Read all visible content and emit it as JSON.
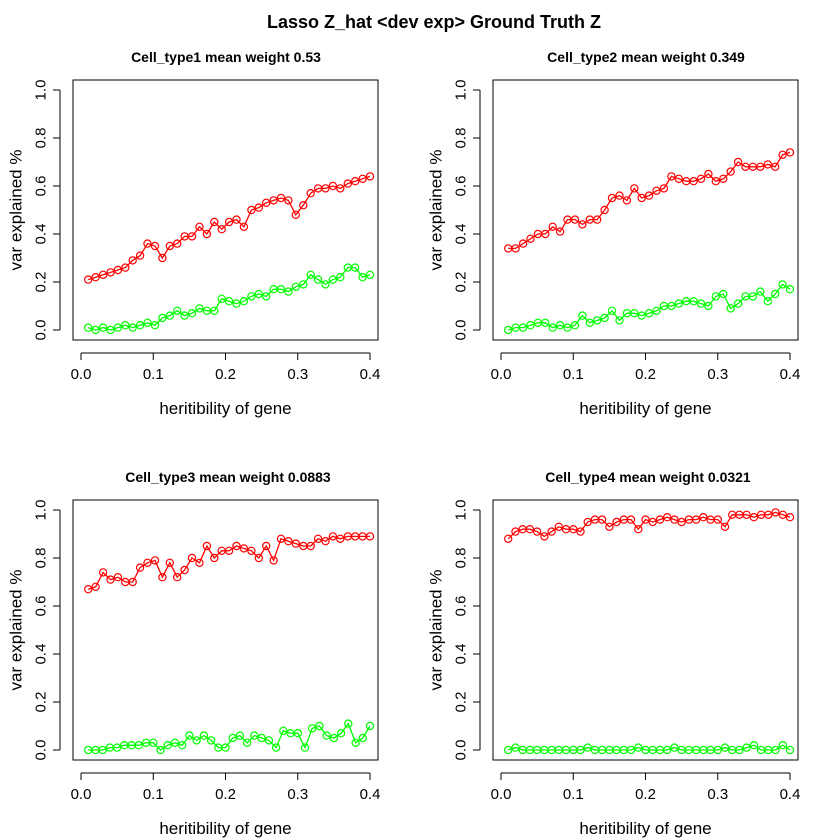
{
  "figure": {
    "title": "Lasso Z_hat <dev exp> Ground Truth Z",
    "xlabel": "heritibility of gene",
    "ylabel": "var explained %"
  },
  "colors": {
    "series_a": "#ff0000",
    "series_b": "#00ff00",
    "axis": "#000000",
    "background": "#ffffff"
  },
  "chart_data": [
    {
      "type": "line",
      "title": "Cell_type1 mean weight 0.53",
      "xlabel": "heritibility of gene",
      "ylabel": "var explained %",
      "xlim": [
        0,
        0.4
      ],
      "ylim": [
        0,
        1.0
      ],
      "xticks": [
        "0.0",
        "0.1",
        "0.2",
        "0.3",
        "0.4"
      ],
      "yticks": [
        "0.0",
        "0.2",
        "0.4",
        "0.6",
        "0.8",
        "1.0"
      ],
      "grid": false,
      "series": [
        {
          "color": "#ff0000",
          "values": [
            0.21,
            0.22,
            0.23,
            0.24,
            0.25,
            0.26,
            0.29,
            0.31,
            0.36,
            0.35,
            0.3,
            0.35,
            0.36,
            0.39,
            0.39,
            0.43,
            0.4,
            0.45,
            0.42,
            0.45,
            0.46,
            0.43,
            0.5,
            0.51,
            0.53,
            0.54,
            0.55,
            0.54,
            0.48,
            0.52,
            0.57,
            0.59,
            0.59,
            0.6,
            0.59,
            0.61,
            0.62,
            0.63,
            0.64
          ]
        },
        {
          "color": "#00ff00",
          "values": [
            0.01,
            0.0,
            0.01,
            0.0,
            0.01,
            0.02,
            0.01,
            0.02,
            0.03,
            0.02,
            0.05,
            0.06,
            0.08,
            0.06,
            0.07,
            0.09,
            0.08,
            0.08,
            0.13,
            0.12,
            0.11,
            0.12,
            0.14,
            0.15,
            0.14,
            0.17,
            0.17,
            0.16,
            0.18,
            0.19,
            0.23,
            0.21,
            0.19,
            0.21,
            0.22,
            0.26,
            0.26,
            0.22,
            0.23
          ]
        }
      ]
    },
    {
      "type": "line",
      "title": "Cell_type2 mean weight 0.349",
      "xlabel": "heritibility of gene",
      "ylabel": "var explained %",
      "xlim": [
        0,
        0.4
      ],
      "ylim": [
        0,
        1.0
      ],
      "xticks": [
        "0.0",
        "0.1",
        "0.2",
        "0.3",
        "0.4"
      ],
      "yticks": [
        "0.0",
        "0.2",
        "0.4",
        "0.6",
        "0.8",
        "1.0"
      ],
      "grid": false,
      "series": [
        {
          "color": "#ff0000",
          "values": [
            0.34,
            0.34,
            0.36,
            0.38,
            0.4,
            0.4,
            0.43,
            0.41,
            0.46,
            0.46,
            0.44,
            0.46,
            0.46,
            0.5,
            0.55,
            0.56,
            0.54,
            0.59,
            0.55,
            0.56,
            0.58,
            0.59,
            0.64,
            0.63,
            0.62,
            0.62,
            0.63,
            0.65,
            0.62,
            0.63,
            0.66,
            0.7,
            0.68,
            0.68,
            0.68,
            0.69,
            0.68,
            0.73,
            0.74
          ]
        },
        {
          "color": "#00ff00",
          "values": [
            0.0,
            0.01,
            0.01,
            0.02,
            0.03,
            0.03,
            0.01,
            0.02,
            0.01,
            0.02,
            0.06,
            0.03,
            0.04,
            0.05,
            0.08,
            0.04,
            0.07,
            0.07,
            0.06,
            0.07,
            0.08,
            0.1,
            0.1,
            0.11,
            0.12,
            0.12,
            0.11,
            0.1,
            0.14,
            0.15,
            0.09,
            0.11,
            0.14,
            0.14,
            0.16,
            0.12,
            0.15,
            0.19,
            0.17
          ]
        }
      ]
    },
    {
      "type": "line",
      "title": "Cell_type3 mean weight 0.0883",
      "xlabel": "heritibility of gene",
      "ylabel": "var explained %",
      "xlim": [
        0,
        0.4
      ],
      "ylim": [
        0,
        1.0
      ],
      "xticks": [
        "0.0",
        "0.1",
        "0.2",
        "0.3",
        "0.4"
      ],
      "yticks": [
        "0.0",
        "0.2",
        "0.4",
        "0.6",
        "0.8",
        "1.0"
      ],
      "grid": false,
      "series": [
        {
          "color": "#ff0000",
          "values": [
            0.67,
            0.68,
            0.74,
            0.71,
            0.72,
            0.7,
            0.7,
            0.76,
            0.78,
            0.79,
            0.72,
            0.78,
            0.72,
            0.75,
            0.8,
            0.78,
            0.85,
            0.8,
            0.83,
            0.83,
            0.85,
            0.84,
            0.83,
            0.8,
            0.85,
            0.79,
            0.88,
            0.87,
            0.86,
            0.85,
            0.85,
            0.88,
            0.87,
            0.89,
            0.88,
            0.89,
            0.89,
            0.89,
            0.89
          ]
        },
        {
          "color": "#00ff00",
          "values": [
            0.0,
            0.0,
            0.0,
            0.01,
            0.01,
            0.02,
            0.02,
            0.02,
            0.03,
            0.03,
            0.0,
            0.02,
            0.03,
            0.02,
            0.06,
            0.04,
            0.06,
            0.04,
            0.01,
            0.01,
            0.05,
            0.06,
            0.03,
            0.06,
            0.05,
            0.04,
            0.01,
            0.08,
            0.07,
            0.07,
            0.01,
            0.09,
            0.1,
            0.06,
            0.05,
            0.07,
            0.11,
            0.03,
            0.05,
            0.1
          ]
        }
      ]
    },
    {
      "type": "line",
      "title": "Cell_type4 mean weight 0.0321",
      "xlabel": "heritibility of gene",
      "ylabel": "var explained %",
      "xlim": [
        0,
        0.4
      ],
      "ylim": [
        0,
        1.0
      ],
      "xticks": [
        "0.0",
        "0.1",
        "0.2",
        "0.3",
        "0.4"
      ],
      "yticks": [
        "0.0",
        "0.2",
        "0.4",
        "0.6",
        "0.8",
        "1.0"
      ],
      "grid": false,
      "series": [
        {
          "color": "#ff0000",
          "values": [
            0.88,
            0.91,
            0.92,
            0.92,
            0.91,
            0.89,
            0.91,
            0.93,
            0.92,
            0.92,
            0.91,
            0.95,
            0.96,
            0.96,
            0.93,
            0.95,
            0.96,
            0.96,
            0.92,
            0.96,
            0.95,
            0.96,
            0.97,
            0.96,
            0.95,
            0.96,
            0.96,
            0.97,
            0.96,
            0.96,
            0.93,
            0.98,
            0.98,
            0.98,
            0.97,
            0.98,
            0.98,
            0.99,
            0.98,
            0.97
          ]
        },
        {
          "color": "#00ff00",
          "values": [
            0.0,
            0.01,
            0.0,
            0.0,
            0.0,
            0.0,
            0.0,
            0.0,
            0.0,
            0.0,
            0.0,
            0.01,
            0.0,
            0.0,
            0.0,
            0.0,
            0.0,
            0.0,
            0.01,
            0.0,
            0.0,
            0.0,
            0.0,
            0.01,
            0.0,
            0.0,
            0.0,
            0.0,
            0.0,
            0.0,
            0.01,
            0.0,
            0.0,
            0.01,
            0.02,
            0.0,
            0.0,
            0.0,
            0.02,
            0.0
          ]
        }
      ]
    }
  ]
}
